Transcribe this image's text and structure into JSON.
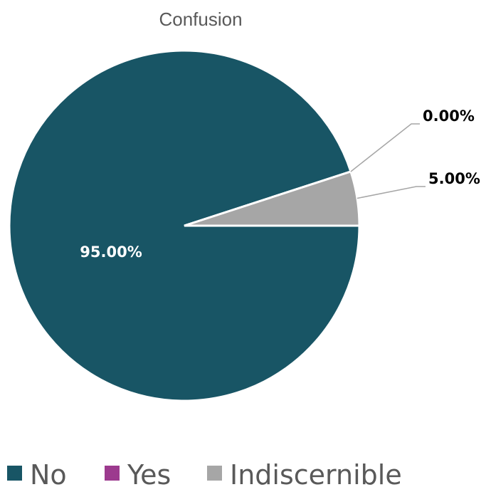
{
  "chart_data": {
    "type": "pie",
    "title": "Confusion",
    "categories": [
      "No",
      "Yes",
      "Indiscernible"
    ],
    "values": [
      95.0,
      0.0,
      5.0
    ],
    "value_labels": [
      "95.00%",
      "0.00%",
      "5.00%"
    ],
    "colors": [
      "#185565",
      "#9c3a8e",
      "#a6a6a6"
    ],
    "legend_position": "bottom",
    "grid": false
  }
}
